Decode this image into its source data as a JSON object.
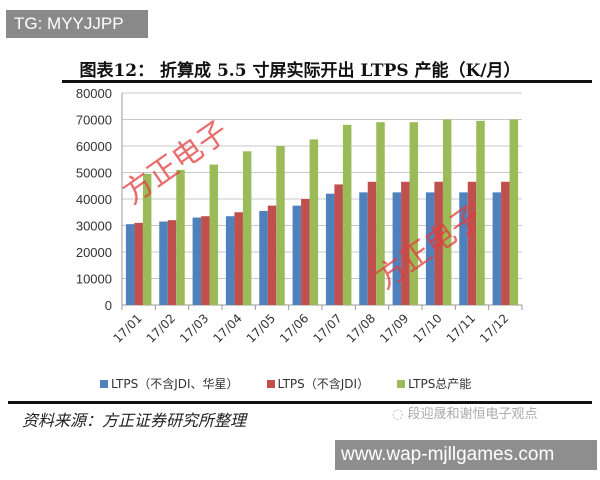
{
  "tg_label": "TG: MYYJJPP",
  "figure_title": "图表12：  折算成 5.5 寸屏实际开出 LTPS 产能（K/月）",
  "source": "资料来源：方正证券研究所整理",
  "wechat_label": "段迎晟和谢恒电子观点",
  "site_label": "www.wap-mjllgames.com",
  "watermark": "方正电子",
  "chart_data": {
    "type": "bar",
    "title": "",
    "xlabel": "",
    "ylabel": "",
    "ylim": [
      0,
      80000
    ],
    "yticks": [
      "0",
      "10000",
      "20000",
      "30000",
      "40000",
      "50000",
      "60000",
      "70000",
      "80000"
    ],
    "grid": true,
    "legend_position": "bottom",
    "categories": [
      "17/01",
      "17/02",
      "17/03",
      "17/04",
      "17/05",
      "17/06",
      "17/07",
      "17/08",
      "17/09",
      "17/10",
      "17/11",
      "17/12"
    ],
    "series": [
      {
        "name": "LTPS（不含JDI、华星）",
        "color": "#4f81bd",
        "values": [
          30500,
          31500,
          33000,
          33500,
          35500,
          37500,
          42000,
          42500,
          42500,
          42500,
          42500,
          42500
        ]
      },
      {
        "name": "LTPS（不含JDI）",
        "color": "#c0504d",
        "values": [
          31000,
          32000,
          33500,
          35000,
          37500,
          40000,
          45500,
          46500,
          46500,
          46500,
          46500,
          46500
        ]
      },
      {
        "name": "LTPS总产能",
        "color": "#9bbb59",
        "values": [
          49500,
          51000,
          53000,
          58000,
          60000,
          62500,
          68000,
          69000,
          69000,
          70000,
          69500,
          70000
        ]
      }
    ]
  }
}
